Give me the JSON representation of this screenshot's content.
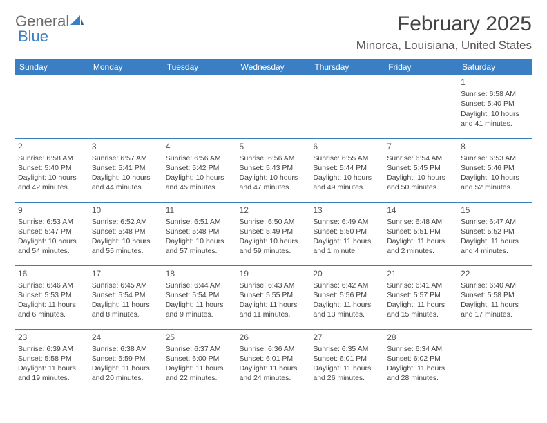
{
  "brand": {
    "part1": "General",
    "part2": "Blue",
    "text_color": "#6b6b6b",
    "accent_color": "#3a7fc4"
  },
  "title": "February 2025",
  "location": "Minorca, Louisiana, United States",
  "header_bg": "#3a7fc4",
  "header_text_color": "#ffffff",
  "border_color": "#3a7fc4",
  "day_headers": [
    "Sunday",
    "Monday",
    "Tuesday",
    "Wednesday",
    "Thursday",
    "Friday",
    "Saturday"
  ],
  "weeks": [
    [
      null,
      null,
      null,
      null,
      null,
      null,
      {
        "n": "1",
        "sr": "Sunrise: 6:58 AM",
        "ss": "Sunset: 5:40 PM",
        "d1": "Daylight: 10 hours",
        "d2": "and 41 minutes."
      }
    ],
    [
      {
        "n": "2",
        "sr": "Sunrise: 6:58 AM",
        "ss": "Sunset: 5:40 PM",
        "d1": "Daylight: 10 hours",
        "d2": "and 42 minutes."
      },
      {
        "n": "3",
        "sr": "Sunrise: 6:57 AM",
        "ss": "Sunset: 5:41 PM",
        "d1": "Daylight: 10 hours",
        "d2": "and 44 minutes."
      },
      {
        "n": "4",
        "sr": "Sunrise: 6:56 AM",
        "ss": "Sunset: 5:42 PM",
        "d1": "Daylight: 10 hours",
        "d2": "and 45 minutes."
      },
      {
        "n": "5",
        "sr": "Sunrise: 6:56 AM",
        "ss": "Sunset: 5:43 PM",
        "d1": "Daylight: 10 hours",
        "d2": "and 47 minutes."
      },
      {
        "n": "6",
        "sr": "Sunrise: 6:55 AM",
        "ss": "Sunset: 5:44 PM",
        "d1": "Daylight: 10 hours",
        "d2": "and 49 minutes."
      },
      {
        "n": "7",
        "sr": "Sunrise: 6:54 AM",
        "ss": "Sunset: 5:45 PM",
        "d1": "Daylight: 10 hours",
        "d2": "and 50 minutes."
      },
      {
        "n": "8",
        "sr": "Sunrise: 6:53 AM",
        "ss": "Sunset: 5:46 PM",
        "d1": "Daylight: 10 hours",
        "d2": "and 52 minutes."
      }
    ],
    [
      {
        "n": "9",
        "sr": "Sunrise: 6:53 AM",
        "ss": "Sunset: 5:47 PM",
        "d1": "Daylight: 10 hours",
        "d2": "and 54 minutes."
      },
      {
        "n": "10",
        "sr": "Sunrise: 6:52 AM",
        "ss": "Sunset: 5:48 PM",
        "d1": "Daylight: 10 hours",
        "d2": "and 55 minutes."
      },
      {
        "n": "11",
        "sr": "Sunrise: 6:51 AM",
        "ss": "Sunset: 5:48 PM",
        "d1": "Daylight: 10 hours",
        "d2": "and 57 minutes."
      },
      {
        "n": "12",
        "sr": "Sunrise: 6:50 AM",
        "ss": "Sunset: 5:49 PM",
        "d1": "Daylight: 10 hours",
        "d2": "and 59 minutes."
      },
      {
        "n": "13",
        "sr": "Sunrise: 6:49 AM",
        "ss": "Sunset: 5:50 PM",
        "d1": "Daylight: 11 hours",
        "d2": "and 1 minute."
      },
      {
        "n": "14",
        "sr": "Sunrise: 6:48 AM",
        "ss": "Sunset: 5:51 PM",
        "d1": "Daylight: 11 hours",
        "d2": "and 2 minutes."
      },
      {
        "n": "15",
        "sr": "Sunrise: 6:47 AM",
        "ss": "Sunset: 5:52 PM",
        "d1": "Daylight: 11 hours",
        "d2": "and 4 minutes."
      }
    ],
    [
      {
        "n": "16",
        "sr": "Sunrise: 6:46 AM",
        "ss": "Sunset: 5:53 PM",
        "d1": "Daylight: 11 hours",
        "d2": "and 6 minutes."
      },
      {
        "n": "17",
        "sr": "Sunrise: 6:45 AM",
        "ss": "Sunset: 5:54 PM",
        "d1": "Daylight: 11 hours",
        "d2": "and 8 minutes."
      },
      {
        "n": "18",
        "sr": "Sunrise: 6:44 AM",
        "ss": "Sunset: 5:54 PM",
        "d1": "Daylight: 11 hours",
        "d2": "and 9 minutes."
      },
      {
        "n": "19",
        "sr": "Sunrise: 6:43 AM",
        "ss": "Sunset: 5:55 PM",
        "d1": "Daylight: 11 hours",
        "d2": "and 11 minutes."
      },
      {
        "n": "20",
        "sr": "Sunrise: 6:42 AM",
        "ss": "Sunset: 5:56 PM",
        "d1": "Daylight: 11 hours",
        "d2": "and 13 minutes."
      },
      {
        "n": "21",
        "sr": "Sunrise: 6:41 AM",
        "ss": "Sunset: 5:57 PM",
        "d1": "Daylight: 11 hours",
        "d2": "and 15 minutes."
      },
      {
        "n": "22",
        "sr": "Sunrise: 6:40 AM",
        "ss": "Sunset: 5:58 PM",
        "d1": "Daylight: 11 hours",
        "d2": "and 17 minutes."
      }
    ],
    [
      {
        "n": "23",
        "sr": "Sunrise: 6:39 AM",
        "ss": "Sunset: 5:58 PM",
        "d1": "Daylight: 11 hours",
        "d2": "and 19 minutes."
      },
      {
        "n": "24",
        "sr": "Sunrise: 6:38 AM",
        "ss": "Sunset: 5:59 PM",
        "d1": "Daylight: 11 hours",
        "d2": "and 20 minutes."
      },
      {
        "n": "25",
        "sr": "Sunrise: 6:37 AM",
        "ss": "Sunset: 6:00 PM",
        "d1": "Daylight: 11 hours",
        "d2": "and 22 minutes."
      },
      {
        "n": "26",
        "sr": "Sunrise: 6:36 AM",
        "ss": "Sunset: 6:01 PM",
        "d1": "Daylight: 11 hours",
        "d2": "and 24 minutes."
      },
      {
        "n": "27",
        "sr": "Sunrise: 6:35 AM",
        "ss": "Sunset: 6:01 PM",
        "d1": "Daylight: 11 hours",
        "d2": "and 26 minutes."
      },
      {
        "n": "28",
        "sr": "Sunrise: 6:34 AM",
        "ss": "Sunset: 6:02 PM",
        "d1": "Daylight: 11 hours",
        "d2": "and 28 minutes."
      },
      null
    ]
  ]
}
